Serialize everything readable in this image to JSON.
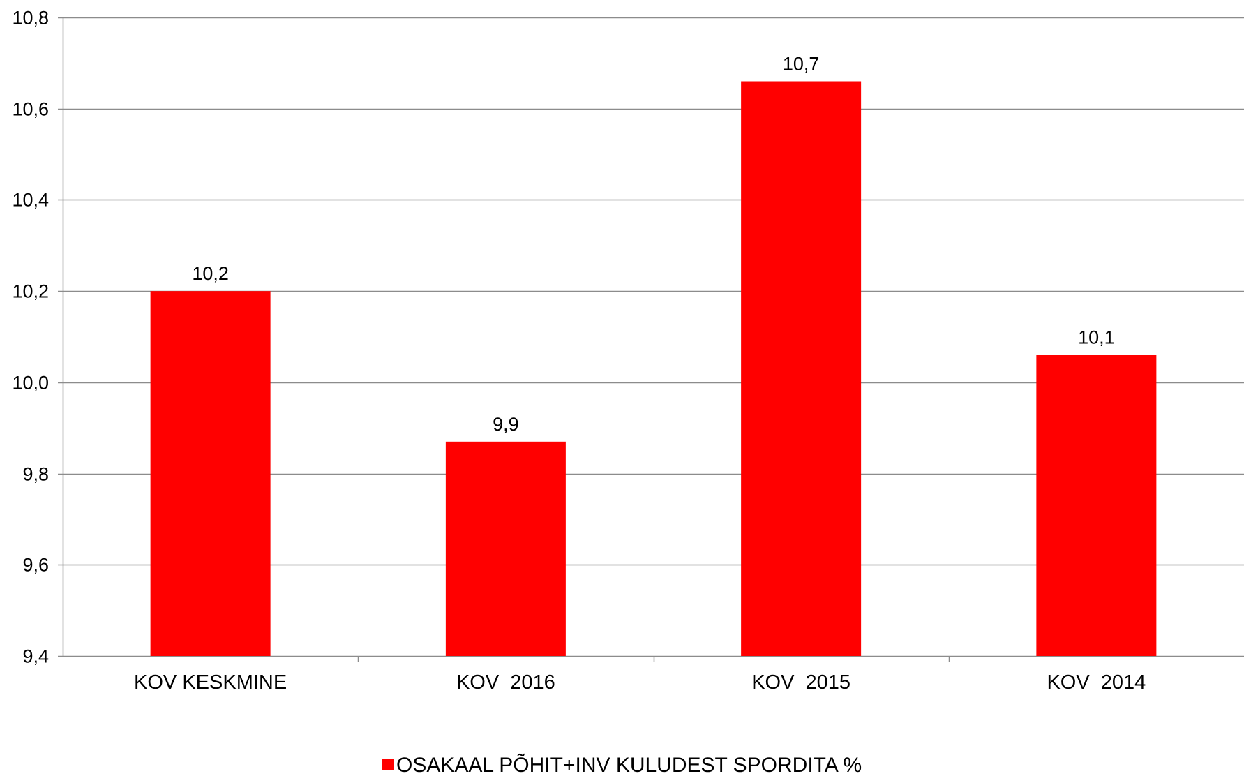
{
  "chart_data": {
    "type": "bar",
    "categories": [
      "KOV KESKMINE",
      "KOV  2016",
      "KOV  2015",
      "KOV  2014"
    ],
    "series": [
      {
        "name": "OSAKAAL PÕHIT+INV KULUDEST SPORDITA %",
        "values": [
          10.2,
          9.87,
          10.66,
          10.06
        ],
        "data_labels": [
          "10,2",
          "9,9",
          "10,7",
          "10,1"
        ],
        "color": "#ff0000"
      }
    ],
    "ylim": [
      9.4,
      10.8
    ],
    "yticks": [
      9.4,
      9.6,
      9.8,
      10.0,
      10.2,
      10.4,
      10.6,
      10.8
    ],
    "ytick_labels": [
      "9,4",
      "9,6",
      "9,8",
      "10,0",
      "10,2",
      "10,4",
      "10,6",
      "10,8"
    ],
    "grid": true,
    "legend_position": "bottom"
  }
}
